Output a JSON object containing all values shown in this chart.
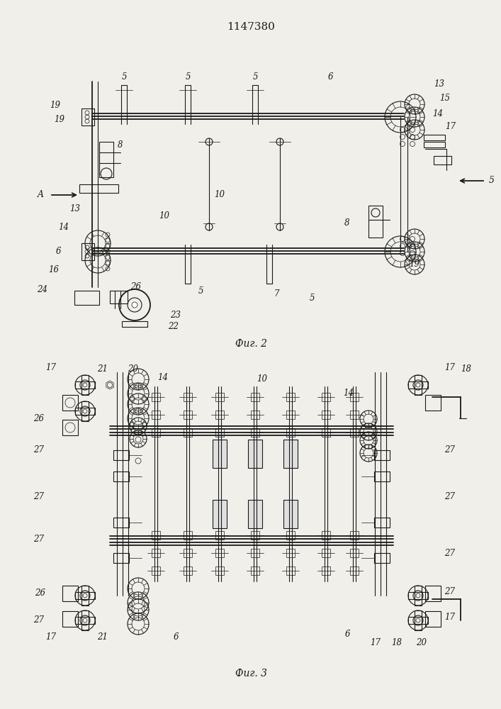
{
  "title": "1147380",
  "bg_color": "#f0efea",
  "line_color": "#1a1a1a",
  "fig2_label": "Фиг. 2",
  "fig3_label": "Фиг. 3"
}
